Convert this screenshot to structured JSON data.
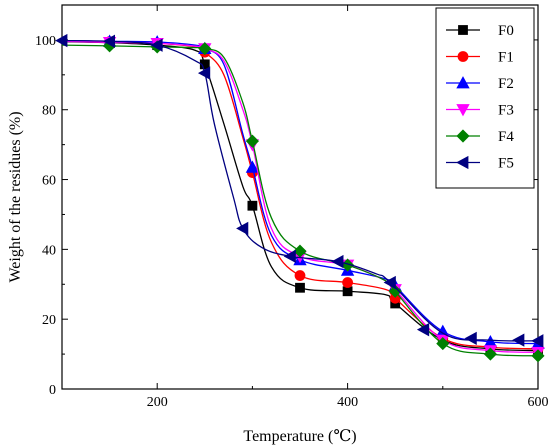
{
  "chart_data": {
    "type": "line",
    "xlabel": "Temperature (℃)",
    "ylabel": "Weight of the residues (%)",
    "xlim": [
      100,
      600
    ],
    "ylim": [
      0,
      110
    ],
    "xticks": [
      200,
      400,
      600
    ],
    "xticks_minor": [
      300,
      500
    ],
    "yticks": [
      0,
      20,
      40,
      60,
      80,
      100
    ],
    "grid": false,
    "legend_position": "top-right",
    "series": [
      {
        "name": "F0",
        "color": "#000000",
        "marker": "square",
        "x": [
          100,
          150,
          200,
          240,
          250,
          270,
          290,
          300,
          320,
          350,
          400,
          440,
          450,
          500,
          550,
          600
        ],
        "y": [
          99.5,
          99.2,
          98.5,
          97.0,
          93,
          76,
          58,
          52.5,
          35,
          29,
          28,
          27,
          24.5,
          14,
          11.5,
          11
        ],
        "markers_x": [
          150,
          200,
          250,
          300,
          350,
          400,
          450,
          500,
          550,
          600
        ],
        "markers_y": [
          99.2,
          98.5,
          93,
          52.5,
          29,
          28,
          24.5,
          14,
          11.5,
          11
        ]
      },
      {
        "name": "F1",
        "color": "#ff0000",
        "marker": "circle",
        "x": [
          100,
          150,
          200,
          240,
          250,
          270,
          290,
          300,
          320,
          350,
          400,
          440,
          450,
          500,
          550,
          600
        ],
        "y": [
          99.8,
          99.5,
          99.0,
          98.0,
          96.5,
          90,
          72,
          62,
          42,
          32.5,
          30.5,
          28.5,
          26,
          14.5,
          12,
          11.5
        ],
        "markers_x": [
          150,
          200,
          250,
          300,
          350,
          400,
          450,
          500,
          550,
          600
        ],
        "markers_y": [
          99.5,
          99.0,
          96.5,
          62,
          32.5,
          30.5,
          26,
          14.5,
          12,
          11.5
        ]
      },
      {
        "name": "F2",
        "color": "#0000ff",
        "marker": "triangle-up",
        "x": [
          100,
          150,
          200,
          240,
          250,
          270,
          290,
          300,
          320,
          350,
          400,
          440,
          450,
          500,
          550,
          600
        ],
        "y": [
          99.8,
          99.6,
          99.4,
          98.5,
          97.5,
          93,
          73,
          63.5,
          44,
          37,
          34,
          31.5,
          29.5,
          16.5,
          13.5,
          13
        ],
        "markers_x": [
          150,
          200,
          250,
          300,
          350,
          400,
          450,
          500,
          550,
          600
        ],
        "markers_y": [
          99.6,
          99.4,
          97.5,
          63.5,
          37,
          34,
          29.5,
          16.5,
          13.5,
          13
        ]
      },
      {
        "name": "F3",
        "color": "#ff00ff",
        "marker": "triangle-down",
        "x": [
          100,
          150,
          200,
          240,
          250,
          270,
          290,
          300,
          320,
          350,
          400,
          440,
          450,
          500,
          550,
          600
        ],
        "y": [
          99.6,
          99.3,
          99.0,
          98.2,
          97.5,
          94,
          80,
          70,
          46,
          38,
          35.5,
          31,
          28.5,
          14,
          11,
          10.5
        ],
        "markers_x": [
          150,
          200,
          250,
          300,
          350,
          400,
          450,
          500,
          550,
          600
        ],
        "markers_y": [
          99.3,
          99.0,
          97.5,
          70,
          38,
          35.5,
          28.5,
          14,
          11,
          10.5
        ]
      },
      {
        "name": "F4",
        "color": "#008000",
        "marker": "diamond",
        "x": [
          100,
          150,
          200,
          240,
          250,
          270,
          290,
          300,
          320,
          350,
          400,
          440,
          450,
          500,
          550,
          600
        ],
        "y": [
          98.5,
          98.3,
          98.0,
          97.8,
          97.5,
          95,
          82,
          71,
          49,
          39.5,
          35.5,
          31,
          28,
          13,
          10,
          9.5
        ],
        "markers_x": [
          150,
          200,
          250,
          300,
          350,
          400,
          450,
          500,
          550,
          600
        ],
        "markers_y": [
          98.3,
          98.0,
          97.5,
          71,
          39.5,
          35.5,
          28,
          13,
          10,
          9.5
        ]
      },
      {
        "name": "F5",
        "color": "#000080",
        "marker": "triangle-left",
        "x": [
          100,
          150,
          200,
          240,
          250,
          260,
          280,
          290,
          310,
          340,
          390,
          430,
          445,
          500,
          550,
          600
        ],
        "y": [
          99.8,
          99.6,
          98.5,
          94,
          90.5,
          76,
          55,
          46,
          40.5,
          38,
          36.5,
          33,
          30.5,
          16,
          14,
          13.8
        ],
        "markers_x": [
          100,
          150,
          200,
          250,
          290,
          340,
          390,
          445,
          480,
          530,
          580,
          600
        ],
        "markers_y": [
          99.8,
          99.6,
          98.5,
          90.5,
          46,
          38,
          36.5,
          30.5,
          17,
          14.5,
          14,
          13.8
        ]
      }
    ]
  }
}
